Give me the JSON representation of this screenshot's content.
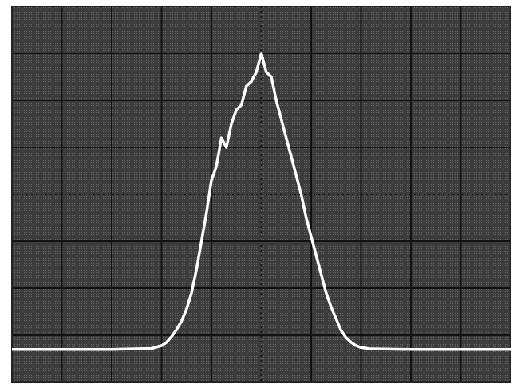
{
  "chart_data": {
    "type": "line",
    "x": [
      0,
      1,
      2,
      2.8,
      3.0,
      3.1,
      3.2,
      3.3,
      3.4,
      3.5,
      3.6,
      3.7,
      3.8,
      3.9,
      4.0,
      4.1,
      4.2,
      4.3,
      4.4,
      4.5,
      4.6,
      4.7,
      4.8,
      4.9,
      5.0,
      5.1,
      5.2,
      5.3,
      5.4,
      5.5,
      5.6,
      5.7,
      5.8,
      5.9,
      6.0,
      6.1,
      6.2,
      6.3,
      6.4,
      6.5,
      6.6,
      6.7,
      6.8,
      6.9,
      7.0,
      7.2,
      8,
      9,
      10
    ],
    "values": [
      0.7,
      0.7,
      0.7,
      0.72,
      0.78,
      0.85,
      0.97,
      1.12,
      1.3,
      1.55,
      1.9,
      2.4,
      3.0,
      3.6,
      4.3,
      4.6,
      5.2,
      5.0,
      5.5,
      5.8,
      5.9,
      6.3,
      6.4,
      6.6,
      7.0,
      6.6,
      6.5,
      6.0,
      5.6,
      5.2,
      4.8,
      4.4,
      4.0,
      3.5,
      3.1,
      2.7,
      2.3,
      1.9,
      1.6,
      1.35,
      1.1,
      0.95,
      0.85,
      0.78,
      0.74,
      0.71,
      0.7,
      0.7,
      0.7
    ],
    "color": "#ffffff",
    "xlim": [
      0,
      10
    ],
    "ylim": [
      0,
      8
    ],
    "xticks": [
      0,
      1,
      2,
      3,
      4,
      5,
      6,
      7,
      8,
      9,
      10
    ],
    "yticks": [
      0,
      1,
      2,
      3,
      4,
      5,
      6,
      7,
      8
    ],
    "grid": true,
    "tick_labels": false
  }
}
